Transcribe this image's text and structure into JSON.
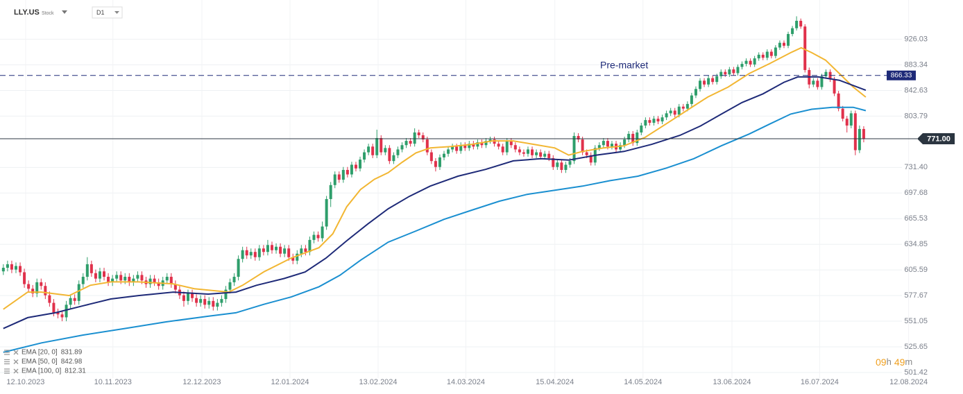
{
  "chart_data": {
    "type": "candlestick",
    "symbol": "LLY.US",
    "instrument_type": "Stock",
    "timeframe": "D1",
    "log_scale": true,
    "grid": true,
    "legend": "bottom-left",
    "up_color": "#2e9e6b",
    "down_color": "#e0314b",
    "xlim": [
      -0.8,
      227
    ],
    "ylim": [
      496.3,
      995.4
    ],
    "yticks": [
      926.03,
      883.34,
      842.63,
      803.79,
      {
        "value": 731.4,
        "label": "731.40"
      },
      697.68,
      665.53,
      634.85,
      605.59,
      577.67,
      551.05,
      525.65,
      501.42
    ],
    "xticks": [
      {
        "value": 5.3,
        "label": "12.10.2023"
      },
      {
        "value": 26.1,
        "label": "10.11.2023"
      },
      {
        "value": 47.3,
        "label": "12.12.2023"
      },
      {
        "value": 68.3,
        "label": "12.01.2024"
      },
      {
        "value": 89.3,
        "label": "13.02.2024"
      },
      {
        "value": 110.2,
        "label": "14.03.2024"
      },
      {
        "value": 131.4,
        "label": "15.04.2024"
      },
      {
        "value": 152.4,
        "label": "14.05.2024"
      },
      {
        "value": 173.6,
        "label": "13.06.2024"
      },
      {
        "value": 194.5,
        "label": "16.07.2024"
      },
      {
        "value": 215.7,
        "label": "12.08.2024"
      }
    ],
    "premarket": {
      "label": "Pre-market",
      "value": 866.33,
      "color": "#1e2a78"
    },
    "last_price": {
      "value": 771,
      "label": "771.00",
      "color": "#2b3540"
    },
    "countdown": {
      "hours": "09",
      "hours_unit": "h",
      "minutes": "49",
      "minutes_unit": "m"
    },
    "open": [
      604,
      608,
      612,
      606,
      610,
      603,
      590,
      585,
      580,
      592,
      588,
      578,
      570,
      560,
      558,
      555,
      568,
      575,
      572,
      590,
      598,
      612,
      602,
      596,
      604,
      598,
      592,
      596,
      600,
      594,
      598,
      592,
      596,
      600,
      594,
      590,
      596,
      592,
      588,
      594,
      598,
      590,
      584,
      578,
      572,
      580,
      575,
      570,
      574,
      568,
      572,
      566,
      570,
      574,
      584,
      592,
      598,
      618,
      628,
      622,
      626,
      620,
      630,
      626,
      634,
      628,
      632,
      624,
      630,
      620,
      616,
      624,
      630,
      626,
      640,
      646,
      642,
      656,
      690,
      708,
      722,
      715,
      728,
      722,
      735,
      730,
      742,
      752,
      760,
      748,
      772,
      752,
      758,
      740,
      748,
      756,
      762,
      768,
      764,
      780,
      776,
      770,
      752,
      740,
      732,
      745,
      750,
      756,
      760,
      754,
      762,
      758,
      764,
      760,
      766,
      762,
      768,
      770,
      764,
      760,
      752,
      768,
      762,
      756,
      752,
      750,
      756,
      748,
      752,
      746,
      750,
      744,
      732,
      738,
      728,
      735,
      740,
      775,
      770,
      752,
      748,
      738,
      758,
      762,
      768,
      760,
      764,
      756,
      762,
      770,
      778,
      765,
      780,
      790,
      798,
      794,
      800,
      796,
      802,
      808,
      812,
      806,
      818,
      815,
      822,
      835,
      845,
      858,
      852,
      862,
      856,
      865,
      872,
      868,
      876,
      870,
      880,
      885,
      890,
      884,
      894,
      900,
      895,
      905,
      898,
      912,
      920,
      915,
      935,
      945,
      958,
      948,
      875,
      852,
      858,
      848,
      865,
      872,
      860,
      838,
      815,
      800,
      790,
      808,
      755,
      785
    ],
    "high": [
      612,
      616,
      616,
      614,
      614,
      607,
      594,
      589,
      596,
      596,
      592,
      582,
      574,
      564,
      562,
      572,
      579,
      579,
      594,
      602,
      620,
      616,
      606,
      608,
      608,
      602,
      600,
      604,
      604,
      602,
      602,
      600,
      604,
      604,
      598,
      600,
      600,
      596,
      598,
      602,
      602,
      594,
      588,
      582,
      584,
      584,
      579,
      578,
      578,
      576,
      576,
      574,
      578,
      588,
      596,
      602,
      622,
      632,
      632,
      630,
      630,
      634,
      634,
      640,
      638,
      636,
      636,
      634,
      634,
      624,
      628,
      634,
      634,
      644,
      650,
      650,
      662,
      694,
      712,
      726,
      726,
      732,
      732,
      739,
      739,
      746,
      756,
      764,
      764,
      784,
      776,
      762,
      762,
      752,
      760,
      766,
      772,
      772,
      786,
      784,
      780,
      774,
      756,
      744,
      749,
      754,
      760,
      764,
      764,
      766,
      766,
      768,
      768,
      770,
      770,
      772,
      774,
      774,
      768,
      764,
      772,
      772,
      766,
      760,
      756,
      760,
      760,
      756,
      756,
      754,
      754,
      748,
      742,
      742,
      739,
      744,
      780,
      779,
      774,
      756,
      752,
      762,
      766,
      772,
      772,
      768,
      768,
      766,
      774,
      782,
      782,
      784,
      794,
      802,
      802,
      804,
      804,
      806,
      812,
      816,
      816,
      822,
      822,
      826,
      839,
      849,
      862,
      862,
      866,
      866,
      869,
      876,
      876,
      880,
      880,
      884,
      889,
      894,
      894,
      898,
      904,
      904,
      909,
      909,
      916,
      924,
      924,
      939,
      949,
      966,
      962,
      952,
      879,
      862,
      862,
      869,
      876,
      876,
      864,
      842,
      819,
      804,
      812,
      812,
      790,
      789
    ],
    "low": [
      600,
      604,
      602,
      602,
      599,
      586,
      581,
      576,
      576,
      584,
      574,
      566,
      556,
      554,
      551,
      551,
      564,
      568,
      568,
      586,
      594,
      598,
      592,
      592,
      594,
      588,
      588,
      592,
      590,
      590,
      588,
      588,
      592,
      590,
      586,
      586,
      588,
      584,
      584,
      590,
      586,
      580,
      574,
      566,
      568,
      571,
      566,
      566,
      564,
      564,
      562,
      562,
      566,
      570,
      580,
      588,
      594,
      614,
      618,
      618,
      616,
      616,
      622,
      622,
      624,
      624,
      620,
      620,
      616,
      612,
      612,
      620,
      622,
      622,
      636,
      638,
      638,
      652,
      680,
      704,
      711,
      711,
      718,
      718,
      726,
      726,
      738,
      748,
      744,
      744,
      748,
      748,
      736,
      736,
      744,
      752,
      758,
      760,
      760,
      772,
      766,
      748,
      736,
      726,
      728,
      741,
      746,
      752,
      750,
      750,
      754,
      754,
      756,
      756,
      758,
      758,
      764,
      760,
      756,
      748,
      748,
      758,
      752,
      748,
      746,
      746,
      744,
      744,
      742,
      742,
      740,
      728,
      728,
      724,
      724,
      731,
      736,
      766,
      748,
      744,
      734,
      734,
      754,
      758,
      756,
      756,
      752,
      752,
      758,
      766,
      761,
      761,
      776,
      786,
      790,
      790,
      792,
      792,
      798,
      804,
      802,
      802,
      811,
      811,
      818,
      831,
      841,
      848,
      848,
      852,
      852,
      861,
      864,
      864,
      866,
      866,
      876,
      881,
      880,
      880,
      890,
      891,
      891,
      894,
      894,
      908,
      911,
      911,
      931,
      941,
      944,
      871,
      846,
      848,
      844,
      844,
      861,
      856,
      834,
      811,
      796,
      780,
      786,
      748,
      751,
      766
    ],
    "close": [
      608,
      612,
      606,
      610,
      603,
      590,
      585,
      580,
      592,
      588,
      578,
      570,
      560,
      558,
      555,
      568,
      575,
      572,
      590,
      598,
      612,
      602,
      596,
      604,
      598,
      592,
      596,
      600,
      594,
      598,
      592,
      596,
      600,
      594,
      590,
      596,
      592,
      588,
      594,
      598,
      590,
      584,
      578,
      572,
      580,
      575,
      570,
      574,
      568,
      572,
      566,
      570,
      574,
      584,
      592,
      598,
      618,
      628,
      622,
      626,
      620,
      630,
      626,
      634,
      628,
      632,
      624,
      630,
      620,
      616,
      624,
      630,
      626,
      640,
      646,
      642,
      656,
      690,
      708,
      722,
      715,
      728,
      722,
      735,
      730,
      742,
      752,
      760,
      748,
      772,
      752,
      758,
      740,
      748,
      756,
      762,
      768,
      764,
      780,
      776,
      770,
      752,
      740,
      732,
      745,
      750,
      756,
      760,
      754,
      762,
      758,
      764,
      760,
      766,
      762,
      768,
      770,
      764,
      760,
      752,
      768,
      762,
      756,
      752,
      750,
      756,
      748,
      752,
      746,
      750,
      744,
      732,
      738,
      728,
      735,
      740,
      775,
      770,
      752,
      748,
      738,
      758,
      762,
      768,
      760,
      764,
      756,
      762,
      770,
      778,
      765,
      780,
      790,
      798,
      794,
      800,
      796,
      802,
      808,
      812,
      806,
      818,
      815,
      822,
      835,
      845,
      858,
      852,
      862,
      856,
      865,
      872,
      868,
      876,
      870,
      880,
      885,
      890,
      884,
      894,
      900,
      895,
      905,
      898,
      912,
      920,
      915,
      935,
      945,
      958,
      948,
      875,
      852,
      858,
      848,
      865,
      872,
      860,
      838,
      815,
      800,
      790,
      808,
      755,
      785,
      771
    ],
    "series": [
      {
        "name": "EMA [20, 0]",
        "last_value": 831.89,
        "color": "#f2b632",
        "x": [
          0,
          5.8,
          9.1,
          15.7,
          20.7,
          25.6,
          32.2,
          40.5,
          45.5,
          53.7,
          57,
          62,
          68.6,
          75.2,
          78.5,
          81.8,
          85.1,
          88.4,
          91.7,
          95,
          98.3,
          101.7,
          106.6,
          111.6,
          116.5,
          121.5,
          126.4,
          131.4,
          134.7,
          138,
          143,
          147.9,
          152.9,
          157.9,
          162.8,
          167.8,
          172.7,
          177.7,
          182.6,
          187.6,
          190.1,
          192.6,
          195.9,
          199.2,
          202.5,
          205.5
        ],
        "values": [
          563.3,
          581.4,
          581.4,
          577.7,
          588.7,
          592.4,
          592.4,
          590.2,
          585,
          581.4,
          588.7,
          603.3,
          619,
          630.9,
          647.3,
          680.3,
          702.2,
          715.5,
          724.4,
          738.3,
          751.2,
          758.1,
          760.1,
          763.1,
          768,
          768,
          763.1,
          758.1,
          748.2,
          753.2,
          758.1,
          761.1,
          773,
          792.3,
          812,
          832.4,
          848,
          869.4,
          885.5,
          903.4,
          911.7,
          903.4,
          891.1,
          869.4,
          848,
          832.4
        ]
      },
      {
        "name": "EMA [50, 0]",
        "last_value": 842.98,
        "color": "#1e2a78",
        "x": [
          0,
          5.8,
          12.4,
          19,
          25.6,
          32.2,
          40.5,
          48.8,
          55.4,
          60.3,
          66.9,
          71.9,
          76.9,
          81.8,
          86.8,
          91.7,
          96.7,
          101.7,
          108.3,
          114.9,
          121.5,
          128.1,
          134.7,
          141.3,
          147.9,
          154.5,
          161.2,
          166.1,
          171.1,
          176,
          181,
          186,
          189.3,
          194.2,
          199.2,
          205.5
        ],
        "values": [
          543.7,
          554.7,
          559.7,
          566.9,
          574.1,
          577.7,
          581.4,
          579.2,
          581.4,
          588.7,
          596.1,
          603.3,
          619,
          639,
          658.9,
          677.7,
          693.3,
          706.6,
          719.7,
          728.7,
          740.3,
          743.2,
          741.3,
          748.2,
          753.2,
          763.1,
          775.9,
          789.4,
          806.9,
          824.2,
          837.5,
          855.5,
          864,
          864,
          858.7,
          843
        ]
      },
      {
        "name": "EMA [100, 0]",
        "last_value": 812.31,
        "color": "#1a8fd0",
        "x": [
          0,
          9.1,
          19,
          28.9,
          38.8,
          48.8,
          55.4,
          62,
          68.6,
          75.2,
          80.2,
          85.1,
          91.7,
          98.3,
          105,
          111.6,
          118.2,
          124.8,
          131.4,
          138,
          144.6,
          151.2,
          157.9,
          164.5,
          171.1,
          177.7,
          182.6,
          187.6,
          192.6,
          197.5,
          202.5,
          205.5
        ],
        "values": [
          520.4,
          529.5,
          537.2,
          543.7,
          550.4,
          556.1,
          559.7,
          568.4,
          576.2,
          587.1,
          599.7,
          616.5,
          637.4,
          650.6,
          664.7,
          676,
          687.3,
          696,
          701.3,
          706.6,
          713.8,
          719.7,
          730.4,
          743.2,
          761.2,
          777.8,
          792.2,
          806.9,
          814,
          817,
          817,
          812
        ]
      }
    ]
  }
}
